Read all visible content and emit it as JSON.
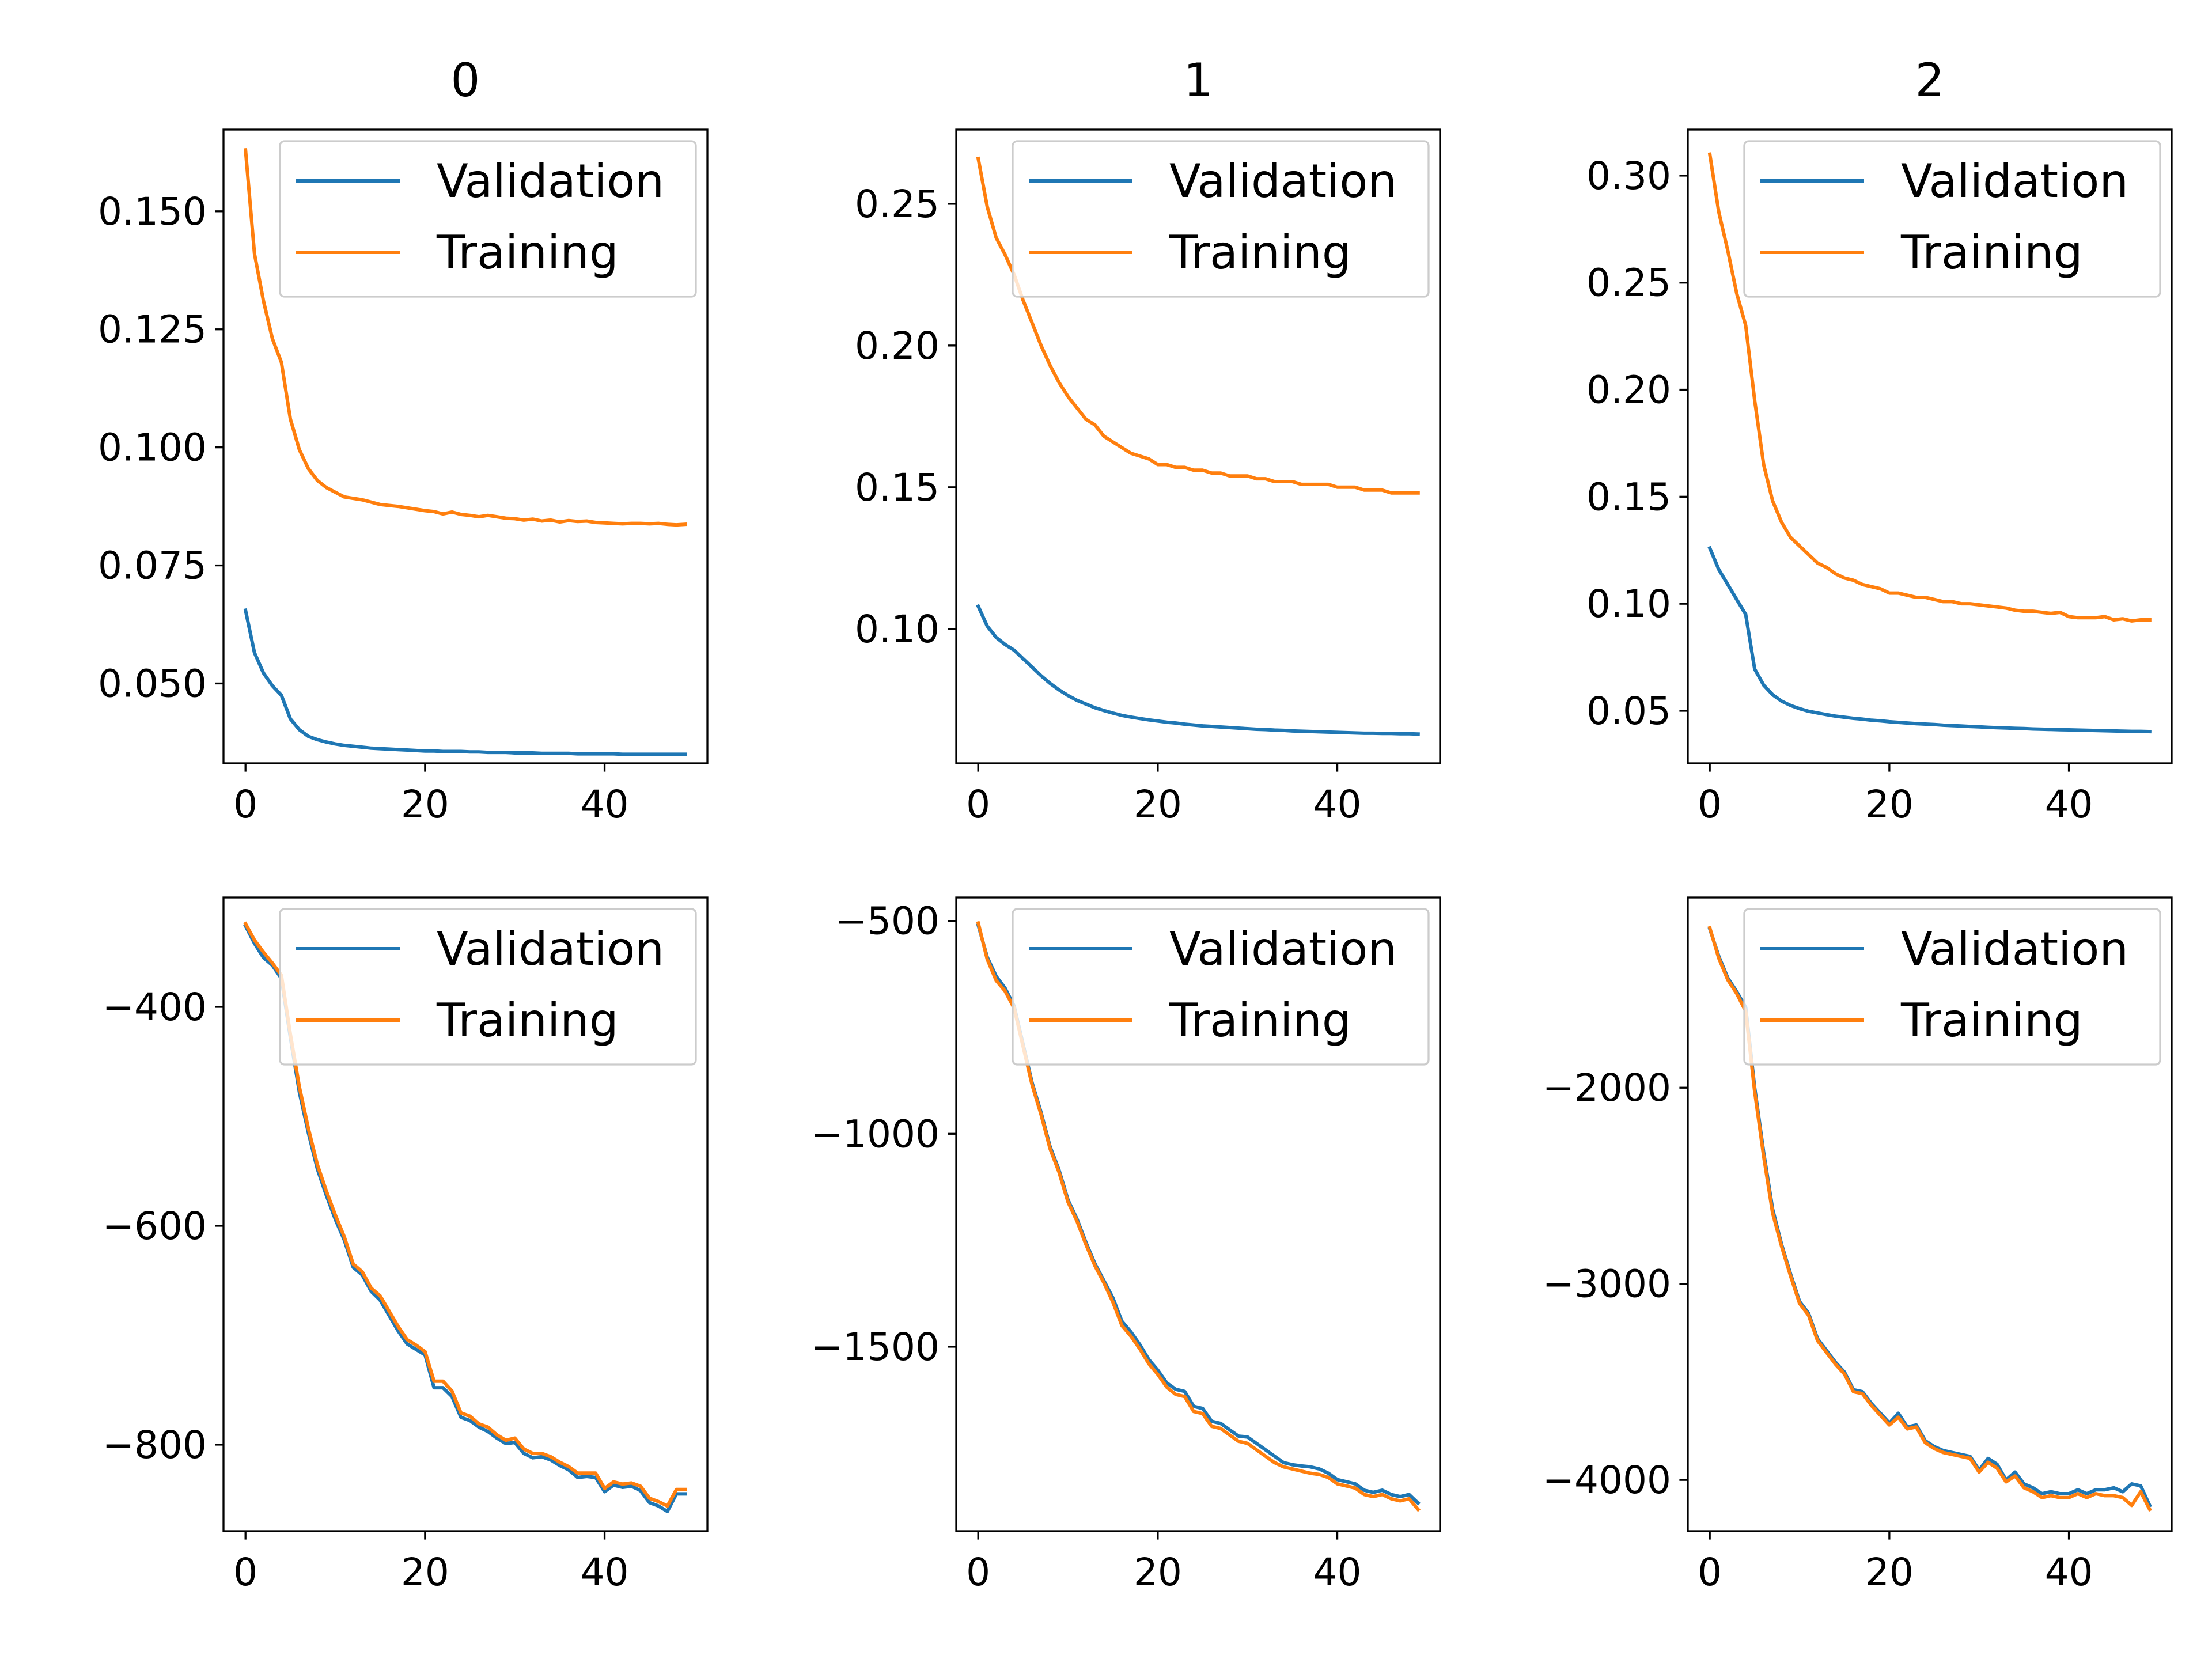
{
  "colors": {
    "validation": "#1f77b4",
    "training": "#ff7f0e",
    "axes": "#000000",
    "background": "#ffffff"
  },
  "chart_data": [
    {
      "type": "line",
      "title": "0",
      "xlabel": "",
      "ylabel": "",
      "grid": false,
      "legend_placement": "top-right",
      "xlim": [
        -2.45,
        51.45
      ],
      "ylim": [
        0.0331,
        0.1673
      ],
      "xticks": [
        0,
        20,
        40
      ],
      "xtick_labels": [
        "0",
        "20",
        "40"
      ],
      "yticks": [
        0.05,
        0.075,
        0.1,
        0.125,
        0.15
      ],
      "ytick_labels": [
        "0.050",
        "0.075",
        "0.100",
        "0.125",
        "0.150"
      ],
      "x": [
        0,
        1,
        2,
        3,
        4,
        5,
        6,
        7,
        8,
        9,
        10,
        11,
        12,
        13,
        14,
        15,
        16,
        17,
        18,
        19,
        20,
        21,
        22,
        23,
        24,
        25,
        26,
        27,
        28,
        29,
        30,
        31,
        32,
        33,
        34,
        35,
        36,
        37,
        38,
        39,
        40,
        41,
        42,
        43,
        44,
        45,
        46,
        47,
        48,
        49
      ],
      "series": [
        {
          "name": "Validation",
          "values": [
            0.0655,
            0.0565,
            0.0522,
            0.0495,
            0.0475,
            0.0425,
            0.0402,
            0.0388,
            0.0381,
            0.0376,
            0.0372,
            0.0369,
            0.0367,
            0.0365,
            0.0363,
            0.0362,
            0.0361,
            0.036,
            0.0359,
            0.0358,
            0.0357,
            0.0357,
            0.0356,
            0.0356,
            0.0356,
            0.0355,
            0.0355,
            0.0354,
            0.0354,
            0.0354,
            0.0353,
            0.0353,
            0.0353,
            0.0352,
            0.0352,
            0.0352,
            0.0352,
            0.0351,
            0.0351,
            0.0351,
            0.0351,
            0.0351,
            0.035,
            0.035,
            0.035,
            0.035,
            0.035,
            0.035,
            0.035,
            0.035
          ]
        },
        {
          "name": "Training",
          "values": [
            0.163,
            0.141,
            0.131,
            0.123,
            0.118,
            0.106,
            0.0995,
            0.0955,
            0.093,
            0.0915,
            0.0905,
            0.0895,
            0.0892,
            0.0889,
            0.0884,
            0.0879,
            0.0877,
            0.0875,
            0.0872,
            0.0869,
            0.0866,
            0.0864,
            0.0859,
            0.0863,
            0.0858,
            0.0856,
            0.0853,
            0.0856,
            0.0853,
            0.085,
            0.0849,
            0.0846,
            0.0848,
            0.0844,
            0.0846,
            0.0842,
            0.0845,
            0.0843,
            0.0844,
            0.0841,
            0.084,
            0.0839,
            0.0838,
            0.0839,
            0.0839,
            0.0838,
            0.0839,
            0.0837,
            0.0836,
            0.0837
          ]
        }
      ]
    },
    {
      "type": "line",
      "title": "1",
      "xlabel": "",
      "ylabel": "",
      "grid": false,
      "legend_placement": "top-right",
      "xlim": [
        -2.45,
        51.45
      ],
      "ylim": [
        0.0526,
        0.2762
      ],
      "xticks": [
        0,
        20,
        40
      ],
      "xtick_labels": [
        "0",
        "20",
        "40"
      ],
      "yticks": [
        0.1,
        0.15,
        0.2,
        0.25
      ],
      "ytick_labels": [
        "0.10",
        "0.15",
        "0.20",
        "0.25"
      ],
      "x": [
        0,
        1,
        2,
        3,
        4,
        5,
        6,
        7,
        8,
        9,
        10,
        11,
        12,
        13,
        14,
        15,
        16,
        17,
        18,
        19,
        20,
        21,
        22,
        23,
        24,
        25,
        26,
        27,
        28,
        29,
        30,
        31,
        32,
        33,
        34,
        35,
        36,
        37,
        38,
        39,
        40,
        41,
        42,
        43,
        44,
        45,
        46,
        47,
        48,
        49
      ],
      "series": [
        {
          "name": "Validation",
          "values": [
            0.108,
            0.101,
            0.097,
            0.0945,
            0.0925,
            0.0895,
            0.0865,
            0.0835,
            0.0808,
            0.0785,
            0.0765,
            0.0748,
            0.0735,
            0.0722,
            0.0712,
            0.0703,
            0.0695,
            0.0689,
            0.0684,
            0.0679,
            0.0675,
            0.0671,
            0.0668,
            0.0664,
            0.0661,
            0.0658,
            0.0656,
            0.0654,
            0.0652,
            0.065,
            0.0648,
            0.0646,
            0.0645,
            0.0643,
            0.0642,
            0.064,
            0.0639,
            0.0638,
            0.0637,
            0.0636,
            0.0635,
            0.0634,
            0.0633,
            0.0632,
            0.0632,
            0.0631,
            0.0631,
            0.063,
            0.063,
            0.0629
          ]
        },
        {
          "name": "Training",
          "values": [
            0.266,
            0.249,
            0.238,
            0.232,
            0.225,
            0.216,
            0.208,
            0.2,
            0.193,
            0.187,
            0.182,
            0.178,
            0.174,
            0.172,
            0.168,
            0.166,
            0.164,
            0.162,
            0.161,
            0.16,
            0.158,
            0.158,
            0.157,
            0.157,
            0.156,
            0.156,
            0.155,
            0.155,
            0.154,
            0.154,
            0.154,
            0.153,
            0.153,
            0.152,
            0.152,
            0.152,
            0.151,
            0.151,
            0.151,
            0.151,
            0.15,
            0.15,
            0.15,
            0.149,
            0.149,
            0.149,
            0.148,
            0.148,
            0.148,
            0.148
          ]
        }
      ]
    },
    {
      "type": "line",
      "title": "2",
      "xlabel": "",
      "ylabel": "",
      "grid": false,
      "legend_placement": "top-right",
      "xlim": [
        -2.45,
        51.45
      ],
      "ylim": [
        0.0255,
        0.3215
      ],
      "xticks": [
        0,
        20,
        40
      ],
      "xtick_labels": [
        "0",
        "20",
        "40"
      ],
      "yticks": [
        0.05,
        0.1,
        0.15,
        0.2,
        0.25,
        0.3
      ],
      "ytick_labels": [
        "0.05",
        "0.10",
        "0.15",
        "0.20",
        "0.25",
        "0.30"
      ],
      "x": [
        0,
        1,
        2,
        3,
        4,
        5,
        6,
        7,
        8,
        9,
        10,
        11,
        12,
        13,
        14,
        15,
        16,
        17,
        18,
        19,
        20,
        21,
        22,
        23,
        24,
        25,
        26,
        27,
        28,
        29,
        30,
        31,
        32,
        33,
        34,
        35,
        36,
        37,
        38,
        39,
        40,
        41,
        42,
        43,
        44,
        45,
        46,
        47,
        48,
        49
      ],
      "series": [
        {
          "name": "Validation",
          "values": [
            0.126,
            0.116,
            0.109,
            0.102,
            0.095,
            0.0695,
            0.062,
            0.0575,
            0.0545,
            0.0525,
            0.051,
            0.0498,
            0.049,
            0.0482,
            0.0475,
            0.047,
            0.0465,
            0.0461,
            0.0456,
            0.0453,
            0.0449,
            0.0446,
            0.0443,
            0.044,
            0.0438,
            0.0436,
            0.0433,
            0.0431,
            0.0429,
            0.0427,
            0.0425,
            0.0423,
            0.0421,
            0.042,
            0.0418,
            0.0417,
            0.0415,
            0.0414,
            0.0413,
            0.0412,
            0.0411,
            0.041,
            0.0409,
            0.0408,
            0.0407,
            0.0406,
            0.0405,
            0.0404,
            0.0404,
            0.0403
          ]
        },
        {
          "name": "Training",
          "values": [
            0.31,
            0.283,
            0.265,
            0.245,
            0.23,
            0.195,
            0.165,
            0.148,
            0.138,
            0.131,
            0.127,
            0.123,
            0.119,
            0.117,
            0.114,
            0.112,
            0.111,
            0.109,
            0.108,
            0.107,
            0.105,
            0.105,
            0.104,
            0.103,
            0.103,
            0.102,
            0.101,
            0.101,
            0.1,
            0.1,
            0.0995,
            0.099,
            0.0985,
            0.098,
            0.097,
            0.0965,
            0.0965,
            0.096,
            0.0955,
            0.096,
            0.094,
            0.0935,
            0.0935,
            0.0935,
            0.094,
            0.0925,
            0.093,
            0.092,
            0.0925,
            0.0925
          ]
        }
      ]
    },
    {
      "type": "line",
      "title": "",
      "xlabel": "",
      "ylabel": "",
      "grid": false,
      "legend_placement": "top-right",
      "xlim": [
        -2.45,
        51.45
      ],
      "ylim": [
        -879,
        -300
      ],
      "xticks": [
        0,
        20,
        40
      ],
      "xtick_labels": [
        "0",
        "20",
        "40"
      ],
      "yticks": [
        -400,
        -600,
        -800
      ],
      "ytick_labels": [
        "−400",
        "−600",
        "−800"
      ],
      "x": [
        0,
        1,
        2,
        3,
        4,
        5,
        6,
        7,
        8,
        9,
        10,
        11,
        12,
        13,
        14,
        15,
        16,
        17,
        18,
        19,
        20,
        21,
        22,
        23,
        24,
        25,
        26,
        27,
        28,
        29,
        30,
        31,
        32,
        33,
        34,
        35,
        36,
        37,
        38,
        39,
        40,
        41,
        42,
        43,
        44,
        45,
        46,
        47,
        48,
        49
      ],
      "series": [
        {
          "name": "Validation",
          "values": [
            -326,
            -342,
            -355,
            -362,
            -374,
            -428,
            -478,
            -515,
            -548,
            -572,
            -594,
            -613,
            -638,
            -645,
            -660,
            -668,
            -682,
            -696,
            -708,
            -713,
            -718,
            -748,
            -748,
            -756,
            -775,
            -778,
            -784,
            -788,
            -794,
            -799,
            -798,
            -808,
            -812,
            -811,
            -814,
            -819,
            -823,
            -830,
            -829,
            -830,
            -843,
            -837,
            -839,
            -838,
            -842,
            -853,
            -856,
            -861,
            -845,
            -845
          ]
        },
        {
          "name": "Training",
          "values": [
            -324,
            -339,
            -350,
            -360,
            -371,
            -425,
            -473,
            -511,
            -544,
            -568,
            -590,
            -610,
            -635,
            -642,
            -657,
            -664,
            -678,
            -692,
            -704,
            -709,
            -715,
            -742,
            -742,
            -751,
            -771,
            -774,
            -781,
            -784,
            -791,
            -796,
            -794,
            -804,
            -808,
            -808,
            -811,
            -816,
            -820,
            -826,
            -826,
            -826,
            -840,
            -834,
            -836,
            -835,
            -838,
            -849,
            -852,
            -856,
            -841,
            -841
          ]
        }
      ]
    },
    {
      "type": "line",
      "title": "",
      "xlabel": "",
      "ylabel": "",
      "grid": false,
      "legend_placement": "top-right",
      "xlim": [
        -2.45,
        51.45
      ],
      "ylim": [
        -1933,
        -445
      ],
      "xticks": [
        0,
        20,
        40
      ],
      "xtick_labels": [
        "0",
        "20",
        "40"
      ],
      "yticks": [
        -500,
        -1000,
        -1500
      ],
      "ytick_labels": [
        "−500",
        "−1000",
        "−1500"
      ],
      "x": [
        0,
        1,
        2,
        3,
        4,
        5,
        6,
        7,
        8,
        9,
        10,
        11,
        12,
        13,
        14,
        15,
        16,
        17,
        18,
        19,
        20,
        21,
        22,
        23,
        24,
        25,
        26,
        27,
        28,
        29,
        30,
        31,
        32,
        33,
        34,
        35,
        36,
        37,
        38,
        39,
        40,
        41,
        42,
        43,
        44,
        45,
        46,
        47,
        48,
        49
      ],
      "series": [
        {
          "name": "Validation",
          "values": [
            -510,
            -585,
            -630,
            -658,
            -700,
            -790,
            -880,
            -950,
            -1030,
            -1085,
            -1155,
            -1200,
            -1255,
            -1305,
            -1345,
            -1385,
            -1440,
            -1465,
            -1495,
            -1530,
            -1555,
            -1585,
            -1600,
            -1605,
            -1640,
            -1645,
            -1675,
            -1680,
            -1695,
            -1710,
            -1712,
            -1727,
            -1742,
            -1757,
            -1772,
            -1777,
            -1780,
            -1782,
            -1787,
            -1797,
            -1812,
            -1817,
            -1822,
            -1837,
            -1842,
            -1837,
            -1847,
            -1852,
            -1847,
            -1867
          ]
        },
        {
          "name": "Training",
          "values": [
            -505,
            -590,
            -640,
            -665,
            -705,
            -795,
            -885,
            -955,
            -1035,
            -1090,
            -1160,
            -1205,
            -1260,
            -1310,
            -1350,
            -1395,
            -1450,
            -1475,
            -1505,
            -1540,
            -1565,
            -1595,
            -1612,
            -1617,
            -1652,
            -1657,
            -1687,
            -1692,
            -1707,
            -1722,
            -1727,
            -1742,
            -1757,
            -1772,
            -1782,
            -1787,
            -1792,
            -1797,
            -1800,
            -1807,
            -1822,
            -1827,
            -1832,
            -1847,
            -1852,
            -1847,
            -1857,
            -1862,
            -1857,
            -1882
          ]
        }
      ]
    },
    {
      "type": "line",
      "title": "",
      "xlabel": "",
      "ylabel": "",
      "grid": false,
      "legend_placement": "top-right",
      "xlim": [
        -2.45,
        51.45
      ],
      "ylim": [
        -4261,
        -1030
      ],
      "xticks": [
        0,
        20,
        40
      ],
      "xtick_labels": [
        "0",
        "20",
        "40"
      ],
      "yticks": [
        -2000,
        -3000,
        -4000
      ],
      "ytick_labels": [
        "−2000",
        "−3000",
        "−4000"
      ],
      "x": [
        0,
        1,
        2,
        3,
        4,
        5,
        6,
        7,
        8,
        9,
        10,
        11,
        12,
        13,
        14,
        15,
        16,
        17,
        18,
        19,
        20,
        21,
        22,
        23,
        24,
        25,
        26,
        27,
        28,
        29,
        30,
        31,
        32,
        33,
        34,
        35,
        36,
        37,
        38,
        39,
        40,
        41,
        42,
        43,
        44,
        45,
        46,
        47,
        48,
        49
      ],
      "series": [
        {
          "name": "Validation",
          "values": [
            -1190,
            -1330,
            -1440,
            -1510,
            -1590,
            -2000,
            -2330,
            -2620,
            -2800,
            -2950,
            -3090,
            -3150,
            -3280,
            -3340,
            -3400,
            -3450,
            -3540,
            -3550,
            -3610,
            -3660,
            -3710,
            -3660,
            -3730,
            -3720,
            -3800,
            -3830,
            -3850,
            -3860,
            -3870,
            -3880,
            -3950,
            -3890,
            -3920,
            -4000,
            -3960,
            -4020,
            -4040,
            -4070,
            -4060,
            -4070,
            -4070,
            -4050,
            -4070,
            -4050,
            -4050,
            -4040,
            -4060,
            -4020,
            -4030,
            -4130
          ]
        },
        {
          "name": "Training",
          "values": [
            -1185,
            -1340,
            -1450,
            -1520,
            -1610,
            -2020,
            -2350,
            -2640,
            -2810,
            -2960,
            -3100,
            -3160,
            -3290,
            -3350,
            -3410,
            -3460,
            -3550,
            -3560,
            -3620,
            -3670,
            -3720,
            -3680,
            -3740,
            -3730,
            -3810,
            -3840,
            -3860,
            -3870,
            -3880,
            -3890,
            -3960,
            -3910,
            -3940,
            -4010,
            -3980,
            -4040,
            -4060,
            -4090,
            -4080,
            -4090,
            -4090,
            -4070,
            -4090,
            -4070,
            -4080,
            -4080,
            -4090,
            -4130,
            -4060,
            -4150
          ]
        }
      ]
    }
  ]
}
